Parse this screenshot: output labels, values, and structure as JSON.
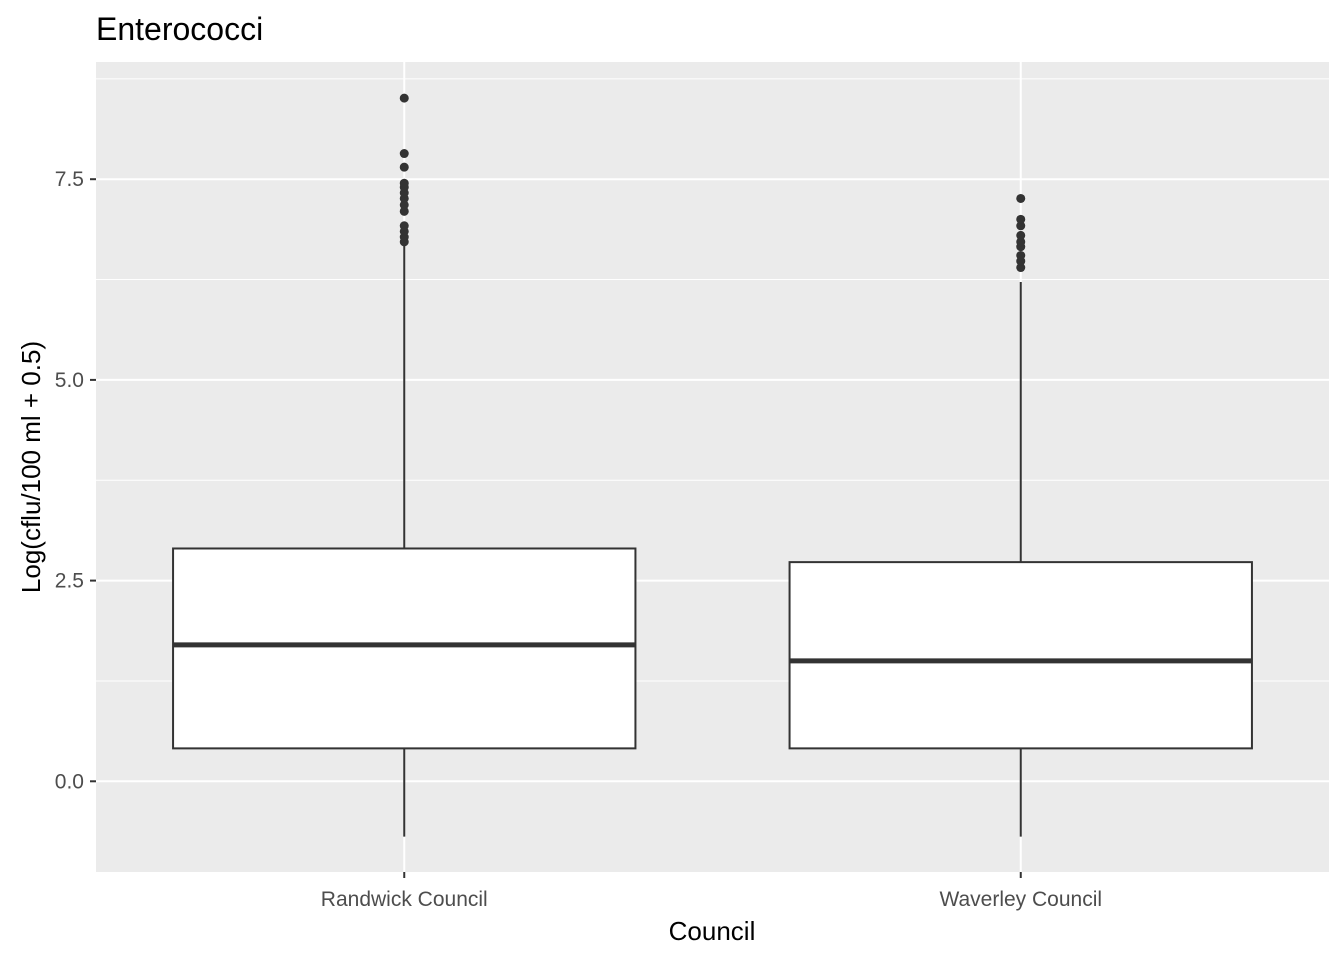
{
  "chart_data": {
    "type": "boxplot",
    "title": "Enterococci",
    "xlabel": "Council",
    "ylabel": "Log(cflu/100 ml + 0.5)",
    "ylim": [
      -1.13,
      8.96
    ],
    "y_ticks": [
      0.0,
      2.5,
      5.0,
      7.5
    ],
    "y_tick_labels": [
      "0.0",
      "2.5",
      "5.0",
      "7.5"
    ],
    "grid": true,
    "legend": "none",
    "categories": [
      "Randwick Council",
      "Waverley Council"
    ],
    "boxes": [
      {
        "category": "Randwick Council",
        "whisker_low": -0.69,
        "q1": 0.41,
        "median": 1.7,
        "q3": 2.9,
        "whisker_high": 6.68,
        "outliers": [
          6.72,
          6.78,
          6.85,
          6.92,
          7.1,
          7.18,
          7.26,
          7.33,
          7.4,
          7.45,
          7.65,
          7.82,
          8.51
        ]
      },
      {
        "category": "Waverley Council",
        "whisker_low": -0.69,
        "q1": 0.41,
        "median": 1.5,
        "q3": 2.73,
        "whisker_high": 6.22,
        "outliers": [
          6.4,
          6.48,
          6.55,
          6.66,
          6.72,
          6.8,
          6.92,
          7.0,
          7.26
        ]
      }
    ],
    "colors": {
      "panel_background": "#ebebeb",
      "grid": "#ffffff",
      "box_fill": "#ffffff",
      "box_line": "#333333",
      "outlier": "#333333"
    }
  }
}
